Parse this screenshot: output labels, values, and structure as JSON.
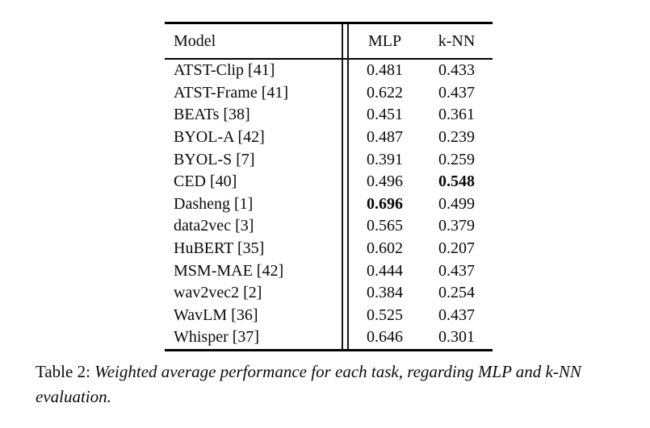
{
  "colors": {
    "background": "#ffffff",
    "text": "#0a0a0a",
    "rule": "#000000"
  },
  "table": {
    "columns": [
      "Model",
      "MLP",
      "k-NN"
    ],
    "rows": [
      {
        "model": "ATST-Clip [41]",
        "mlp": "0.481",
        "knn": "0.433",
        "mlp_bold": false,
        "knn_bold": false
      },
      {
        "model": "ATST-Frame [41]",
        "mlp": "0.622",
        "knn": "0.437",
        "mlp_bold": false,
        "knn_bold": false
      },
      {
        "model": "BEATs [38]",
        "mlp": "0.451",
        "knn": "0.361",
        "mlp_bold": false,
        "knn_bold": false
      },
      {
        "model": "BYOL-A [42]",
        "mlp": "0.487",
        "knn": "0.239",
        "mlp_bold": false,
        "knn_bold": false
      },
      {
        "model": "BYOL-S [7]",
        "mlp": "0.391",
        "knn": "0.259",
        "mlp_bold": false,
        "knn_bold": false
      },
      {
        "model": "CED [40]",
        "mlp": "0.496",
        "knn": "0.548",
        "mlp_bold": false,
        "knn_bold": true
      },
      {
        "model": "Dasheng [1]",
        "mlp": "0.696",
        "knn": "0.499",
        "mlp_bold": true,
        "knn_bold": false
      },
      {
        "model": "data2vec [3]",
        "mlp": "0.565",
        "knn": "0.379",
        "mlp_bold": false,
        "knn_bold": false
      },
      {
        "model": "HuBERT [35]",
        "mlp": "0.602",
        "knn": "0.207",
        "mlp_bold": false,
        "knn_bold": false
      },
      {
        "model": "MSM-MAE [42]",
        "mlp": "0.444",
        "knn": "0.437",
        "mlp_bold": false,
        "knn_bold": false
      },
      {
        "model": "wav2vec2 [2]",
        "mlp": "0.384",
        "knn": "0.254",
        "mlp_bold": false,
        "knn_bold": false
      },
      {
        "model": "WavLM [36]",
        "mlp": "0.525",
        "knn": "0.437",
        "mlp_bold": false,
        "knn_bold": false
      },
      {
        "model": "Whisper [37]",
        "mlp": "0.646",
        "knn": "0.301",
        "mlp_bold": false,
        "knn_bold": false
      }
    ]
  },
  "caption": {
    "label": "Table 2:",
    "text": "Weighted average performance for each task, regarding MLP and k-NN evaluation."
  }
}
